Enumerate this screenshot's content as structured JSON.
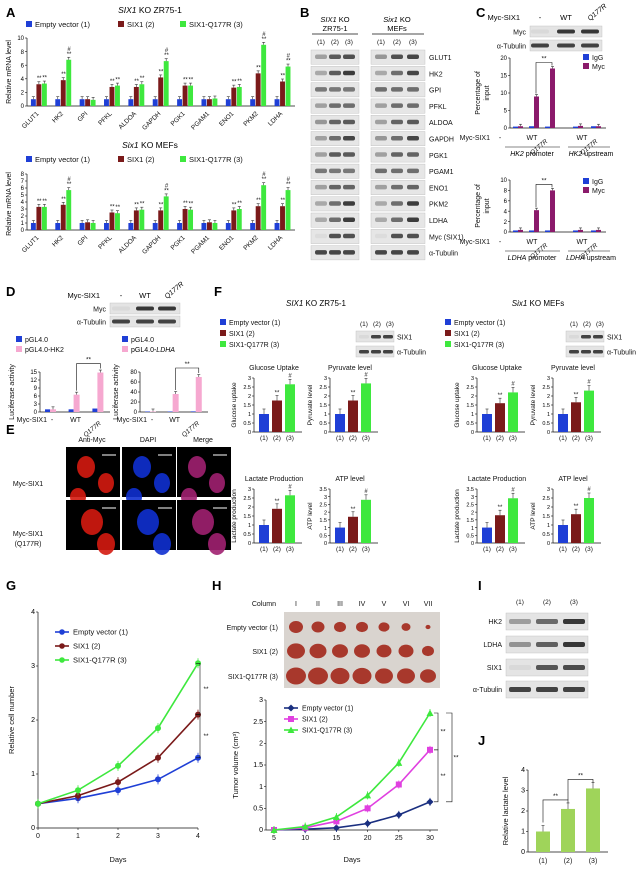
{
  "colors": {
    "blue": "#1f3fd6",
    "darkred": "#7a1a1a",
    "green": "#3ee83e",
    "purple": "#8b1a6b",
    "magenta": "#e040e0",
    "lightpink": "#f6a8d0",
    "navy": "#1a2f80",
    "ltgreen": "#9fd45a",
    "imgRed": "#d41a10",
    "imgBlue": "#1030d0",
    "imgMag": "#a02070"
  },
  "panel_letters": [
    "A",
    "B",
    "C",
    "D",
    "E",
    "F",
    "G",
    "H",
    "I",
    "J"
  ],
  "A": {
    "top_title_pre": "SIX1",
    "top_title_post": " KO ZR75-1",
    "bottom_title_pre": "Six1",
    "bottom_title_post": " KO MEFs",
    "legend": [
      "Empty vector (1)",
      "SIX1 (2)",
      "SIX1-Q177R (3)"
    ],
    "ylabel": "Relative mRNA level",
    "sig": "**",
    "sig2": "#"
  },
  "B": {
    "col1_pre": "SIX1",
    "col1_post": " KO",
    "col1_line2": "ZR75-1",
    "col2_pre": "Six1",
    "col2_post": " KO",
    "col2_line2": "MEFs",
    "lanes": [
      "(1)",
      "(2)",
      "(3)",
      "(1)",
      "(2)",
      "(3)"
    ],
    "rows": [
      "GLUT1",
      "HK2",
      "GPI",
      "PFKL",
      "ALDOA",
      "GAPDH",
      "PGK1",
      "PGAM1",
      "ENO1",
      "PKM2",
      "LDHA",
      "Myc (SIX1)",
      "α-Tubulin"
    ]
  },
  "C": {
    "myc_six1": "Myc-SIX1",
    "dash": "-",
    "wt": "WT",
    "q": "Q177R",
    "blot": [
      "Myc",
      "α-Tubulin"
    ],
    "ylabel_a": "Percentage of",
    "ylabel_b": "input",
    "legend": [
      "IgG",
      "Myc"
    ],
    "hk2_promoter_pre": "HK2",
    "hk2_promoter_post": " promoter",
    "hk2_up_pre": "HK2",
    "hk2_up_post": " upstream",
    "ldha_promoter_pre": "LDHA",
    "ldha_promoter_post": " promoter",
    "ldha_up_pre": "LDHA",
    "ldha_up_post": " upstream",
    "sig": "**"
  },
  "D": {
    "myc_six1": "Myc-SIX1",
    "dash": "-",
    "wt": "WT",
    "q": "Q177R",
    "blot": [
      "Myc",
      "α-Tubulin"
    ],
    "legend_left": [
      "pGL4.0",
      "pGL4.0-HK2"
    ],
    "legend_right_a": "pGL4.0",
    "legend_right_b_pre": "pGL4.0-",
    "legend_right_b_em": "LDHA",
    "ylabel": "Luciferase activity",
    "sig": "**"
  },
  "E": {
    "cols": [
      "Anti-Myc",
      "DAPI",
      "Merge"
    ],
    "rows": [
      "Myc-SIX1",
      "Myc-SIX1",
      "(Q177R)"
    ]
  },
  "F": {
    "left_title_pre": "SIX1",
    "left_title_post": " KO ZR75-1",
    "right_title_pre": "Six1",
    "right_title_post": " KO MEFs",
    "legend": [
      "Empty vector (1)",
      "SIX1 (2)",
      "SIX1-Q177R (3)"
    ],
    "lanes": [
      "(1)",
      "(2)",
      "(3)"
    ],
    "blot": [
      "SIX1",
      "α-Tubulin"
    ],
    "titles": [
      "Glucose Uptake",
      "Pyruvate level",
      "Glucose Uptake",
      "Pyruvate level",
      "Lactate Production",
      "ATP level",
      "Lactate Production",
      "ATP level"
    ],
    "ylabels": [
      "Glucose uptake",
      "Pyruvate level",
      "Glucose uptake",
      "Pyruvate level",
      "Lactate production",
      "ATP level",
      "Lactate production",
      "ATP level"
    ],
    "sig": "**",
    "sig2": "#"
  },
  "G": {
    "legend": [
      "Empty vector (1)",
      "SIX1 (2)",
      "SIX1-Q177R (3)"
    ],
    "ylabel": "Relative cell number",
    "xlabel": "Days",
    "sig": "**"
  },
  "H": {
    "column_label": "Column",
    "columns": [
      "I",
      "II",
      "III",
      "IV",
      "V",
      "VI",
      "VII"
    ],
    "rows": [
      "Empty vector (1)",
      "SIX1 (2)",
      "SIX1-Q177R (3)"
    ],
    "legend": [
      "Empty vector (1)",
      "SIX1 (2)",
      "SIX1-Q177R (3)"
    ],
    "ylabel": "Tumor volume (cm³)",
    "xlabel": "Days",
    "sig": "**"
  },
  "I": {
    "lanes": [
      "(1)",
      "(2)",
      "(3)"
    ],
    "rows": [
      "HK2",
      "LDHA",
      "SIX1",
      "α-Tubulin"
    ]
  },
  "J": {
    "ylabel": "Relative lactate level",
    "sig": "**"
  },
  "chart_data": [
    {
      "id": "A_top",
      "type": "bar",
      "categories": [
        "GLUT1",
        "HK2",
        "GPI",
        "PFKL",
        "ALDOA",
        "GAPDH",
        "PGK1",
        "PGAM1",
        "ENO1",
        "PKM2",
        "LDHA"
      ],
      "series": [
        {
          "name": "Empty vector (1)",
          "values": [
            1,
            1,
            1,
            1,
            1,
            1,
            1,
            1,
            1,
            1,
            1
          ]
        },
        {
          "name": "SIX1 (2)",
          "values": [
            3.2,
            3.8,
            1.0,
            2.8,
            2.8,
            4.2,
            3.0,
            1.0,
            2.7,
            4.8,
            3.6
          ]
        },
        {
          "name": "SIX1-Q177R (3)",
          "values": [
            3.3,
            6.8,
            0.9,
            3.0,
            3.2,
            6.6,
            3.0,
            1.1,
            2.8,
            9.0,
            5.8
          ]
        }
      ],
      "ylim": [
        0,
        10
      ],
      "yticks": [
        0,
        2,
        4,
        6,
        8,
        10
      ],
      "sig2": [
        false,
        true,
        false,
        false,
        false,
        true,
        false,
        false,
        false,
        true,
        true
      ]
    },
    {
      "id": "A_bottom",
      "type": "bar",
      "categories": [
        "GLUT1",
        "HK2",
        "GPI",
        "PFKL",
        "ALDOA",
        "GAPDH",
        "PGK1",
        "PGAM1",
        "ENO1",
        "PKM2",
        "LDHA"
      ],
      "series": [
        {
          "name": "Empty vector (1)",
          "values": [
            1,
            1,
            1,
            1,
            1,
            1,
            1,
            1,
            1,
            1,
            1
          ]
        },
        {
          "name": "SIX1 (2)",
          "values": [
            3.3,
            3.6,
            1.1,
            2.5,
            2.8,
            2.8,
            3.0,
            1.1,
            2.8,
            3.4,
            3.4
          ]
        },
        {
          "name": "SIX1-Q177R (3)",
          "values": [
            3.3,
            5.7,
            1.0,
            2.4,
            2.9,
            4.8,
            2.9,
            1.0,
            3.0,
            6.4,
            5.7
          ]
        }
      ],
      "ylim": [
        0,
        8
      ],
      "yticks": [
        0,
        1,
        2,
        3,
        4,
        5,
        6,
        7,
        8
      ],
      "sig2": [
        false,
        true,
        false,
        false,
        false,
        true,
        false,
        false,
        false,
        true,
        true
      ]
    },
    {
      "id": "C_HK2",
      "type": "bar",
      "groups": [
        "WT",
        "Q177R",
        "WT",
        "Q177R"
      ],
      "series": [
        {
          "name": "IgG",
          "values": [
            0.4,
            0.5,
            0.4,
            0.4,
            0.5
          ]
        },
        {
          "name": "Myc",
          "values": [
            0.5,
            9.0,
            17.0,
            0.6,
            0.5
          ]
        }
      ],
      "ylim": [
        0,
        20
      ],
      "yticks": [
        0,
        5,
        10,
        15,
        20
      ]
    },
    {
      "id": "C_LDHA",
      "type": "bar",
      "series": [
        {
          "name": "IgG",
          "values": [
            0.3,
            0.3,
            0.3,
            0.3,
            0.3
          ]
        },
        {
          "name": "Myc",
          "values": [
            0.4,
            4.2,
            8.0,
            0.4,
            0.4
          ]
        }
      ],
      "ylim": [
        0,
        10
      ],
      "yticks": [
        0,
        2,
        4,
        6,
        8,
        10
      ]
    },
    {
      "id": "D_HK2",
      "type": "bar",
      "series": [
        {
          "name": "pGL4.0",
          "values": [
            1.0,
            1.0,
            1.3
          ]
        },
        {
          "name": "pGL4.0-HK2",
          "values": [
            1.0,
            6.5,
            14.8
          ]
        }
      ],
      "ylim": [
        0,
        15
      ],
      "yticks": [
        0,
        3,
        6,
        9,
        12,
        15
      ]
    },
    {
      "id": "D_LDHA",
      "type": "bar",
      "series": [
        {
          "name": "pGL4.0",
          "values": [
            1.0,
            1.0,
            1.2
          ]
        },
        {
          "name": "pGL4.0-LDHA",
          "values": [
            1.0,
            36,
            70
          ]
        }
      ],
      "ylim": [
        0,
        80
      ],
      "yticks": [
        0,
        20,
        40,
        60,
        80
      ]
    },
    {
      "id": "F_ZR_glu",
      "type": "bar",
      "values": [
        1.0,
        1.75,
        2.65
      ],
      "ylim": [
        0,
        3
      ],
      "yticks": [
        0,
        0.5,
        1,
        1.5,
        2,
        2.5,
        3
      ]
    },
    {
      "id": "F_ZR_pyr",
      "type": "bar",
      "values": [
        1.0,
        1.75,
        2.7
      ],
      "ylim": [
        0,
        3
      ],
      "yticks": [
        0,
        0.5,
        1,
        1.5,
        2,
        2.5,
        3
      ]
    },
    {
      "id": "F_MEF_glu",
      "type": "bar",
      "values": [
        1.0,
        1.6,
        2.2
      ],
      "ylim": [
        0,
        3
      ],
      "yticks": [
        0,
        0.5,
        1,
        1.5,
        2,
        2.5,
        3
      ]
    },
    {
      "id": "F_MEF_pyr",
      "type": "bar",
      "values": [
        1.0,
        1.65,
        2.3
      ],
      "ylim": [
        0,
        3
      ],
      "yticks": [
        0,
        0.5,
        1,
        1.5,
        2,
        2.5,
        3
      ]
    },
    {
      "id": "F_ZR_lac",
      "type": "bar",
      "values": [
        1.0,
        1.9,
        2.65
      ],
      "ylim": [
        0,
        3
      ],
      "yticks": [
        0,
        0.5,
        1,
        1.5,
        2,
        2.5,
        3
      ]
    },
    {
      "id": "F_ZR_atp",
      "type": "bar",
      "values": [
        1.0,
        1.7,
        2.8
      ],
      "ylim": [
        0,
        3.5
      ],
      "yticks": [
        0,
        0.5,
        1,
        1.5,
        2,
        2.5,
        3,
        3.5
      ]
    },
    {
      "id": "F_MEF_lac",
      "type": "bar",
      "values": [
        1.0,
        1.8,
        2.9
      ],
      "ylim": [
        0,
        3.5
      ],
      "yticks": [
        0,
        0.5,
        1,
        1.5,
        2,
        2.5,
        3,
        3.5
      ]
    },
    {
      "id": "F_MEF_atp",
      "type": "bar",
      "values": [
        1.0,
        1.6,
        2.5
      ],
      "ylim": [
        0,
        3
      ],
      "yticks": [
        0,
        0.5,
        1,
        1.5,
        2,
        2.5,
        3
      ]
    },
    {
      "id": "G",
      "type": "line",
      "x": [
        0,
        1,
        2,
        3,
        4
      ],
      "series": [
        {
          "name": "Empty vector (1)",
          "values": [
            0.45,
            0.55,
            0.7,
            0.9,
            1.3
          ]
        },
        {
          "name": "SIX1 (2)",
          "values": [
            0.45,
            0.6,
            0.85,
            1.3,
            2.1
          ]
        },
        {
          "name": "SIX1-Q177R (3)",
          "values": [
            0.45,
            0.7,
            1.15,
            1.85,
            3.05
          ]
        }
      ],
      "ylim": [
        0,
        4
      ],
      "yticks": [
        0,
        1,
        2,
        3,
        4
      ],
      "xticks": [
        0,
        1,
        2,
        3,
        4
      ]
    },
    {
      "id": "H",
      "type": "line",
      "x": [
        5,
        10,
        15,
        20,
        25,
        30
      ],
      "series": [
        {
          "name": "Empty vector (1)",
          "values": [
            0,
            0.02,
            0.05,
            0.15,
            0.35,
            0.65
          ]
        },
        {
          "name": "SIX1 (2)",
          "values": [
            0,
            0.05,
            0.2,
            0.5,
            1.05,
            1.85
          ]
        },
        {
          "name": "SIX1-Q177R (3)",
          "values": [
            0,
            0.08,
            0.3,
            0.8,
            1.55,
            2.7
          ]
        }
      ],
      "ylim": [
        0,
        3
      ],
      "yticks": [
        0,
        0.5,
        1,
        1.5,
        2,
        2.5,
        3
      ],
      "xticks": [
        5,
        10,
        15,
        20,
        25,
        30
      ]
    },
    {
      "id": "J",
      "type": "bar",
      "categories": [
        "(1)",
        "(2)",
        "(3)"
      ],
      "values": [
        1.0,
        2.1,
        3.1
      ],
      "ylim": [
        0,
        4
      ],
      "yticks": [
        0,
        1,
        2,
        3,
        4
      ]
    }
  ]
}
